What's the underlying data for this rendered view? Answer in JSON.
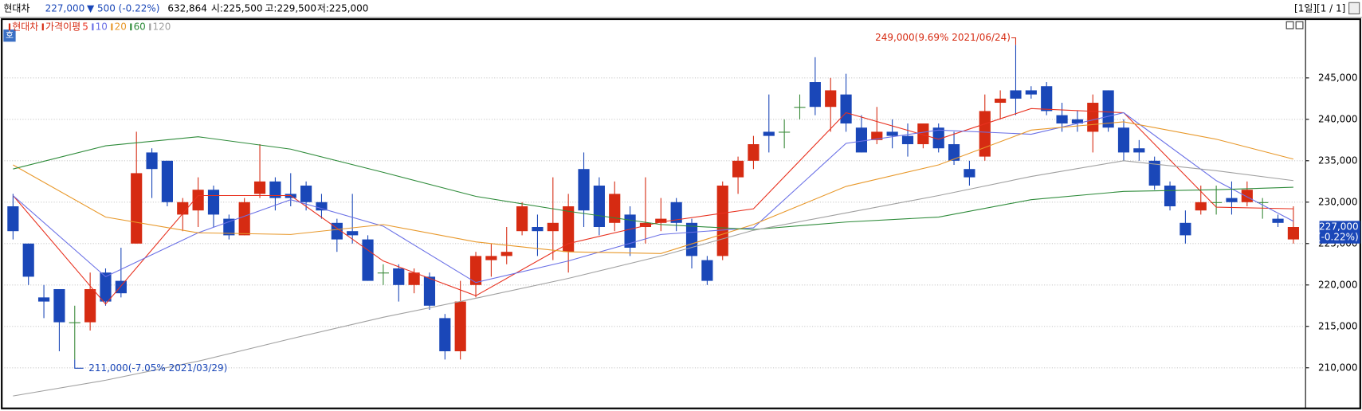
{
  "header": {
    "name": "현대차",
    "price": "227,000",
    "change": "▼ 500 (-0.22%)",
    "volume": "632,864",
    "open": "시:225,500",
    "high": "고:229,500",
    "low": "저:225,000",
    "period": "[1일][1 / 1]"
  },
  "ui": {
    "button": "호"
  },
  "chart_data": {
    "type": "candlestick",
    "name": "현대차",
    "ma_label": "가격이평",
    "up_color": "#d62b12",
    "down_color": "#1a47b8",
    "flat_color": "#3a8a3a",
    "open": [
      229500,
      225000,
      218500,
      219500,
      215500,
      215500,
      221500,
      220500,
      225000,
      236000,
      235000,
      228500,
      229000,
      231500,
      228000,
      226000,
      231000,
      232500,
      231000,
      232000,
      230000,
      227500,
      226500,
      225500,
      221500,
      222000,
      220000,
      221000,
      216000,
      212000,
      220000,
      223000,
      223500,
      226500,
      227000,
      226500,
      224000,
      234000,
      232000,
      227500,
      228500,
      227000,
      227500,
      230000,
      227500,
      223000,
      223500,
      233000,
      235000,
      238500,
      238500,
      241500,
      244500,
      241500,
      243000,
      239000,
      237500,
      238500,
      238000,
      237000,
      239000,
      237000,
      234000,
      235500,
      242000,
      243500,
      243500,
      244000,
      240500,
      240000,
      238500,
      243500,
      239000,
      236500,
      235000,
      232000,
      227500,
      229000,
      230000,
      230500,
      230000,
      230000,
      228000,
      225500
    ],
    "high": [
      231000,
      225000,
      220000,
      219500,
      217500,
      221500,
      222000,
      224500,
      238500,
      236500,
      235000,
      230500,
      233000,
      232000,
      228500,
      230500,
      237000,
      233000,
      233500,
      232500,
      231000,
      228000,
      231000,
      226000,
      222500,
      222500,
      222000,
      221500,
      216500,
      220500,
      224000,
      225000,
      227000,
      230000,
      228500,
      233000,
      231000,
      236000,
      233000,
      232500,
      229500,
      233000,
      230500,
      230500,
      228000,
      223500,
      232500,
      235500,
      238000,
      243000,
      240000,
      243000,
      247500,
      245000,
      245500,
      240500,
      241500,
      240000,
      239500,
      239500,
      239500,
      238500,
      235000,
      243000,
      243500,
      249000,
      244000,
      244500,
      242000,
      241000,
      243000,
      243500,
      240000,
      237500,
      235500,
      232500,
      229000,
      232000,
      232000,
      232500,
      232500,
      230500,
      228500,
      229500
    ],
    "low": [
      225500,
      220000,
      216000,
      212000,
      211000,
      214500,
      217500,
      218500,
      225000,
      230500,
      229500,
      226500,
      227000,
      227000,
      225500,
      226000,
      230500,
      229000,
      229500,
      229000,
      228000,
      224000,
      225000,
      220500,
      220000,
      218000,
      219000,
      217000,
      211000,
      211000,
      218500,
      221000,
      222500,
      226000,
      223500,
      223000,
      221500,
      227000,
      226000,
      226500,
      223500,
      225000,
      226500,
      226500,
      222000,
      220000,
      223000,
      231000,
      234000,
      236000,
      236500,
      240000,
      240500,
      238500,
      238500,
      236000,
      237000,
      236500,
      235500,
      236500,
      236000,
      234500,
      232000,
      235000,
      240000,
      240500,
      242500,
      240500,
      238500,
      238500,
      236000,
      238500,
      235000,
      235000,
      231500,
      229000,
      225000,
      228500,
      228500,
      228500,
      229500,
      228000,
      227000,
      225000
    ],
    "close": [
      226500,
      221000,
      218000,
      215500,
      215500,
      219500,
      218000,
      219000,
      233500,
      234000,
      230000,
      230000,
      231500,
      228500,
      226000,
      230000,
      232500,
      230500,
      230500,
      230000,
      229000,
      225500,
      226000,
      220500,
      221500,
      220000,
      221500,
      217500,
      212000,
      218000,
      223500,
      223500,
      224000,
      229500,
      226500,
      227500,
      229500,
      229000,
      227000,
      231000,
      224500,
      227500,
      228000,
      227500,
      223500,
      220500,
      232000,
      235000,
      237000,
      238000,
      238500,
      241500,
      241500,
      243500,
      239500,
      236000,
      238500,
      238000,
      237000,
      239500,
      236500,
      235000,
      233000,
      241000,
      242500,
      242500,
      243000,
      241000,
      239500,
      239500,
      242000,
      239000,
      236000,
      236000,
      232000,
      229500,
      226000,
      230000,
      230000,
      230000,
      231500,
      230000,
      227500,
      227000
    ],
    "lines": [
      {
        "name": "5",
        "color": "#e8301e",
        "x": [
          0,
          6,
          12,
          18,
          24,
          30,
          36,
          42,
          48,
          54,
          60,
          66,
          72,
          78,
          83
        ],
        "values": [
          230800,
          217700,
          230800,
          230800,
          222900,
          218700,
          225000,
          227600,
          229200,
          240800,
          237600,
          241300,
          240800,
          229400,
          229200
        ]
      },
      {
        "name": "10",
        "color": "#6a70e6",
        "x": [
          0,
          6,
          12,
          18,
          24,
          30,
          36,
          42,
          48,
          54,
          60,
          66,
          72,
          78,
          83
        ],
        "values": [
          230800,
          221000,
          226300,
          230300,
          227100,
          220300,
          222900,
          226100,
          226900,
          237100,
          238700,
          238200,
          240800,
          232600,
          227700
        ]
      },
      {
        "name": "20",
        "color": "#e8982a",
        "x": [
          0,
          6,
          12,
          18,
          24,
          30,
          36,
          42,
          48,
          54,
          60,
          66,
          72,
          78,
          83
        ],
        "values": [
          234500,
          228200,
          226300,
          226100,
          227300,
          225200,
          224000,
          223800,
          227300,
          231900,
          234500,
          238700,
          239700,
          237600,
          235200
        ]
      },
      {
        "name": "60",
        "color": "#2e8b3a",
        "x": [
          0,
          6,
          12,
          18,
          24,
          30,
          36,
          42,
          48,
          54,
          60,
          66,
          72,
          78,
          83
        ],
        "values": [
          234000,
          236800,
          237900,
          236400,
          233600,
          230700,
          228900,
          227300,
          226700,
          227600,
          228200,
          230300,
          231300,
          231500,
          231800
        ]
      },
      {
        "name": "120",
        "color": "#a0a0a0",
        "x": [
          0,
          6,
          12,
          18,
          24,
          30,
          36,
          42,
          48,
          54,
          60,
          66,
          72,
          78,
          83
        ],
        "values": [
          206600,
          208500,
          210800,
          213500,
          216100,
          218400,
          220800,
          223500,
          226600,
          228700,
          230800,
          233100,
          235000,
          233800,
          232600
        ]
      }
    ],
    "annotations": [
      {
        "text": "249,000(9.69% 2021/06/24)",
        "index": 65,
        "value": 249000,
        "color": "#d62b12"
      },
      {
        "text": "211,000(-7.05% 2021/03/29)",
        "index": 4,
        "value": 211000,
        "color": "#1a47b8"
      }
    ],
    "last_price": {
      "value": 227000,
      "label": "227,000",
      "change": "(-0.22%)",
      "color": "#1a47b8"
    },
    "ylim": [
      205100,
      252100
    ],
    "yticks": [
      {
        "value": 210000,
        "label": "210,000"
      },
      {
        "value": 215000,
        "label": "215,000"
      },
      {
        "value": 220000,
        "label": "220,000"
      },
      {
        "value": 225000,
        "label": "225,000"
      },
      {
        "value": 230000,
        "label": "230,000"
      },
      {
        "value": 235000,
        "label": "235,000"
      },
      {
        "value": 240000,
        "label": "240,000"
      },
      {
        "value": 245000,
        "label": "245,000"
      }
    ],
    "grid": true
  }
}
